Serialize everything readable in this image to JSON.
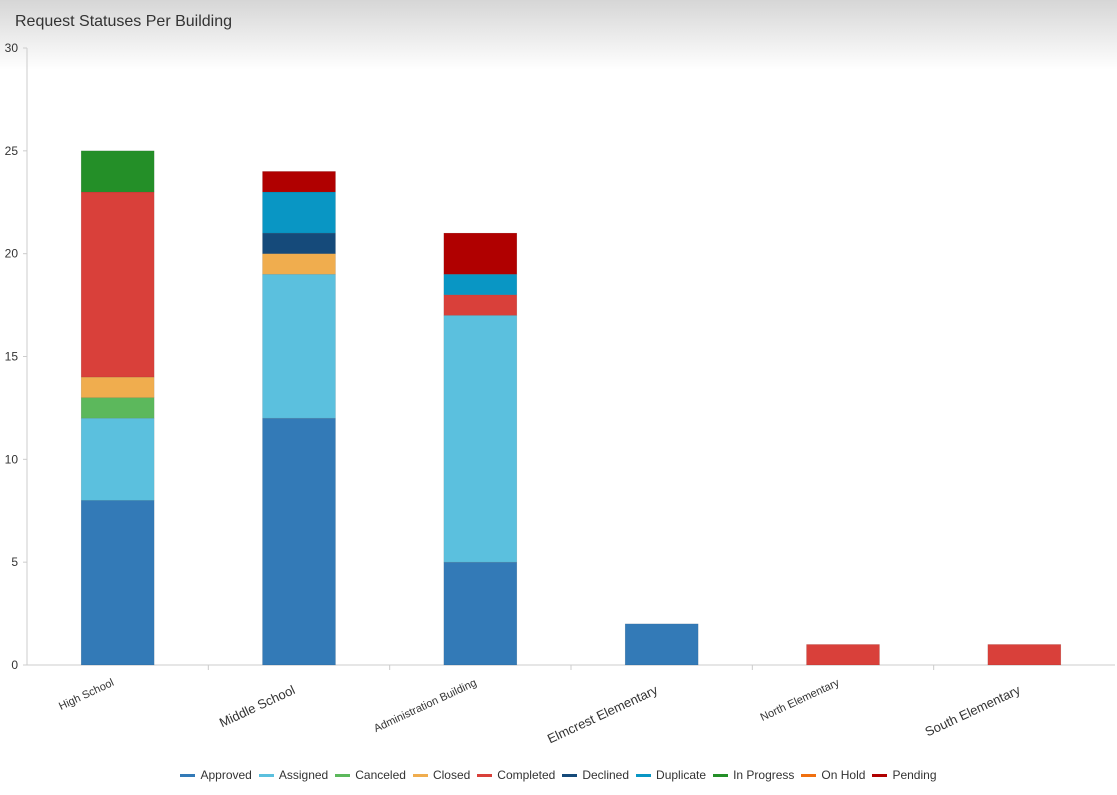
{
  "chart_data": {
    "type": "bar",
    "stacked": true,
    "title": "Request Statuses Per Building",
    "categories": [
      "High School",
      "Middle School",
      "Administration Building",
      "Elmcrest Elementary",
      "North Elementary",
      "South Elementary"
    ],
    "ylim": [
      0,
      30
    ],
    "yticks": [
      0,
      5,
      10,
      15,
      20,
      25,
      30
    ],
    "legend_position": "bottom",
    "grid": false,
    "series": [
      {
        "name": "Approved",
        "color": "#337ab7",
        "values": [
          8,
          12,
          5,
          2,
          0,
          0
        ]
      },
      {
        "name": "Assigned",
        "color": "#5bc0de",
        "values": [
          4,
          7,
          12,
          0,
          0,
          0
        ]
      },
      {
        "name": "Canceled",
        "color": "#5cb85c",
        "values": [
          1,
          0,
          0,
          0,
          0,
          0
        ]
      },
      {
        "name": "Closed",
        "color": "#f0ad4e",
        "values": [
          1,
          1,
          0,
          0,
          0,
          0
        ]
      },
      {
        "name": "Completed",
        "color": "#d9403a",
        "values": [
          9,
          0,
          1,
          0,
          1,
          1
        ]
      },
      {
        "name": "Declined",
        "color": "#154a7a",
        "values": [
          0,
          1,
          0,
          0,
          0,
          0
        ]
      },
      {
        "name": "Duplicate",
        "color": "#0996c4",
        "values": [
          0,
          2,
          1,
          0,
          0,
          0
        ]
      },
      {
        "name": "In Progress",
        "color": "#248f28",
        "values": [
          2,
          0,
          0,
          0,
          0,
          0
        ]
      },
      {
        "name": "On Hold",
        "color": "#f07010",
        "values": [
          0,
          0,
          0,
          0,
          0,
          0
        ]
      },
      {
        "name": "Pending",
        "color": "#b00000",
        "values": [
          0,
          1,
          2,
          0,
          0,
          0
        ]
      }
    ]
  }
}
